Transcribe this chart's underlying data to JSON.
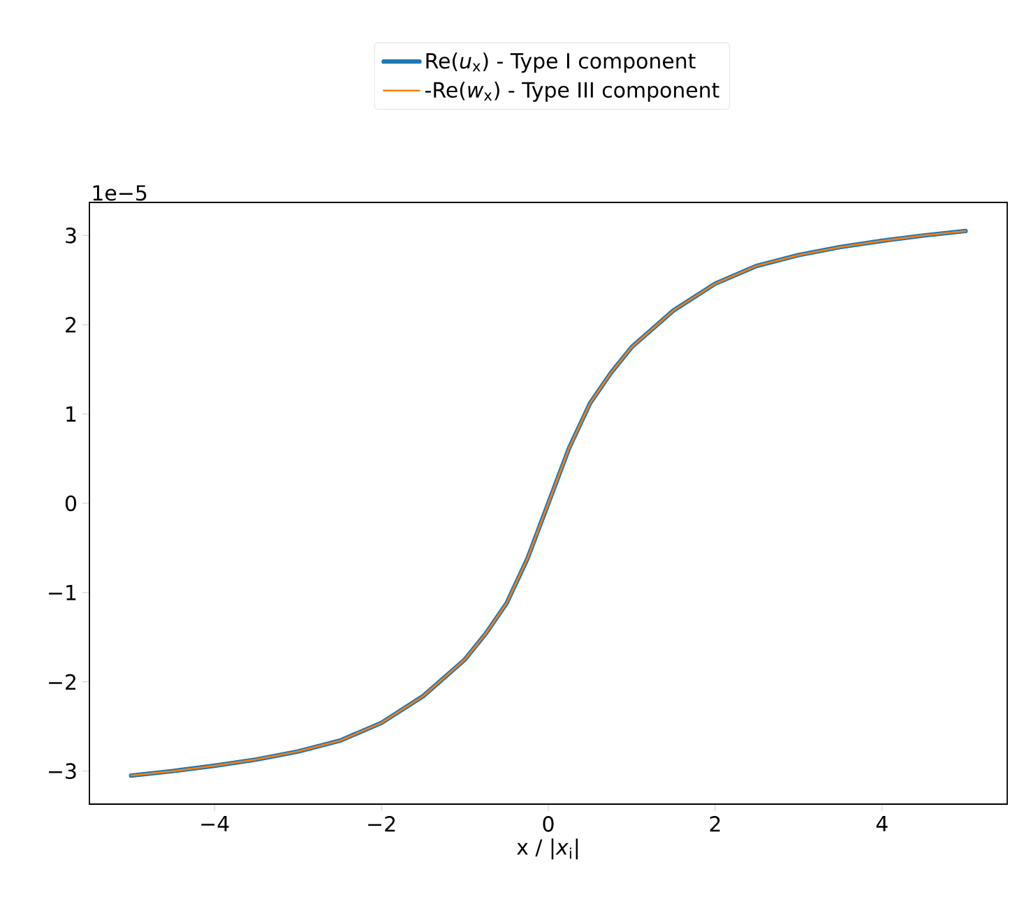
{
  "chart_data": {
    "type": "line",
    "xlabel": "x / |*x*$_{i}$|",
    "annotations": [
      "1e−5"
    ],
    "xlim": [
      -5.5,
      5.5
    ],
    "ylim": [
      -3.37,
      3.37
    ],
    "xticks": [
      {
        "value": -4,
        "label": "−4"
      },
      {
        "value": -2,
        "label": "−2"
      },
      0,
      2,
      4
    ],
    "yticks": [
      {
        "value": -3,
        "label": "−3"
      },
      {
        "value": -2,
        "label": "−2"
      },
      {
        "value": -1,
        "label": "−1"
      },
      0,
      1,
      2,
      3
    ],
    "legend": "top",
    "grid": false,
    "series": [
      {
        "name": "Re(*u*$_{x}$) - Type I component",
        "color": "#1f77b4",
        "x": [
          -5,
          -4.5,
          -4,
          -3.5,
          -3,
          -2.5,
          -2,
          -1.5,
          -1,
          -0.75,
          -0.5,
          -0.25,
          0,
          0.25,
          0.5,
          0.75,
          1,
          1.5,
          2,
          2.5,
          3,
          3.5,
          4,
          4.5,
          5
        ],
        "values": [
          -3.05,
          -3.0,
          -2.94,
          -2.87,
          -2.78,
          -2.66,
          -2.46,
          -2.16,
          -1.75,
          -1.46,
          -1.12,
          -0.62,
          0,
          0.62,
          1.12,
          1.46,
          1.75,
          2.16,
          2.46,
          2.66,
          2.78,
          2.87,
          2.94,
          3.0,
          3.05
        ]
      },
      {
        "name": "-Re(*w*$_{x}$) - Type III component",
        "color": "#ff7f0e",
        "x": [
          -5,
          -4.5,
          -4,
          -3.5,
          -3,
          -2.5,
          -2,
          -1.5,
          -1,
          -0.75,
          -0.5,
          -0.25,
          0,
          0.25,
          0.5,
          0.75,
          1,
          1.5,
          2,
          2.5,
          3,
          3.5,
          4,
          4.5,
          5
        ],
        "values": [
          -3.05,
          -3.0,
          -2.94,
          -2.87,
          -2.78,
          -2.66,
          -2.46,
          -2.16,
          -1.75,
          -1.46,
          -1.12,
          -0.62,
          0,
          0.62,
          1.12,
          1.46,
          1.75,
          2.16,
          2.46,
          2.66,
          2.78,
          2.87,
          2.94,
          3.0,
          3.05
        ]
      }
    ]
  }
}
